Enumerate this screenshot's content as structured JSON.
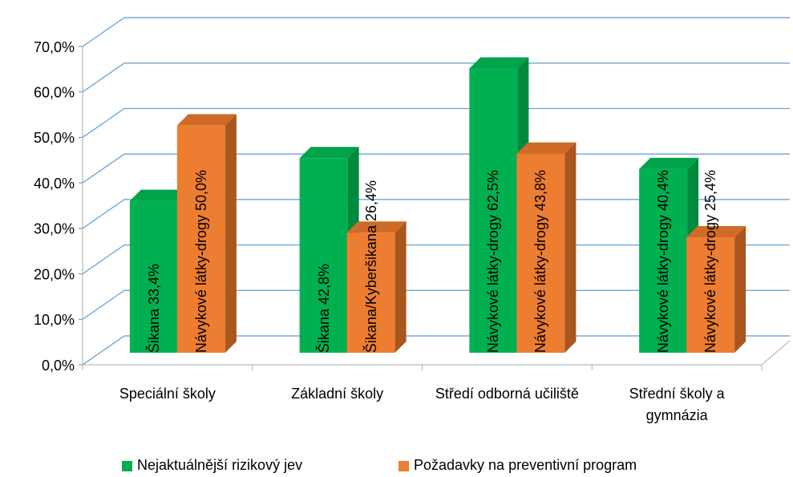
{
  "chart_data": {
    "type": "bar3d",
    "categories": [
      "Speciální školy",
      "Základní školy",
      "Středí odborná učiliště",
      "Střední školy a gymnázia"
    ],
    "series": [
      {
        "name": "Nejaktuálnější rizikový jev",
        "color": "#00b050",
        "values": [
          33.4,
          42.8,
          62.5,
          40.4
        ],
        "value_labels": [
          "Šikana 33,4%",
          "Šikana 42,8%",
          "Návykové látky-drogy 62,5%",
          "Návykové látky-drogy 40,4%"
        ]
      },
      {
        "name": "Požadavky na preventivní program",
        "color": "#ed7d31",
        "values": [
          50.0,
          26.4,
          43.8,
          25.4
        ],
        "value_labels": [
          "Návykové látky-drogy 50,0%",
          "Šikana/Kyberšikana 26,4%",
          "Návykové látky-drogy 43,8%",
          "Návykové látky-drogy 25,4%"
        ]
      }
    ],
    "ylim": [
      0,
      70
    ],
    "yticks": [
      {
        "value": 0,
        "label": "0,0%"
      },
      {
        "value": 10,
        "label": "10,0%"
      },
      {
        "value": 20,
        "label": "20,0%"
      },
      {
        "value": 30,
        "label": "30,0%"
      },
      {
        "value": 40,
        "label": "40,0%"
      },
      {
        "value": 50,
        "label": "50,0%"
      },
      {
        "value": 60,
        "label": "60,0%"
      },
      {
        "value": 70,
        "label": "70,0%"
      }
    ],
    "grid": true,
    "legend": "bottom"
  }
}
